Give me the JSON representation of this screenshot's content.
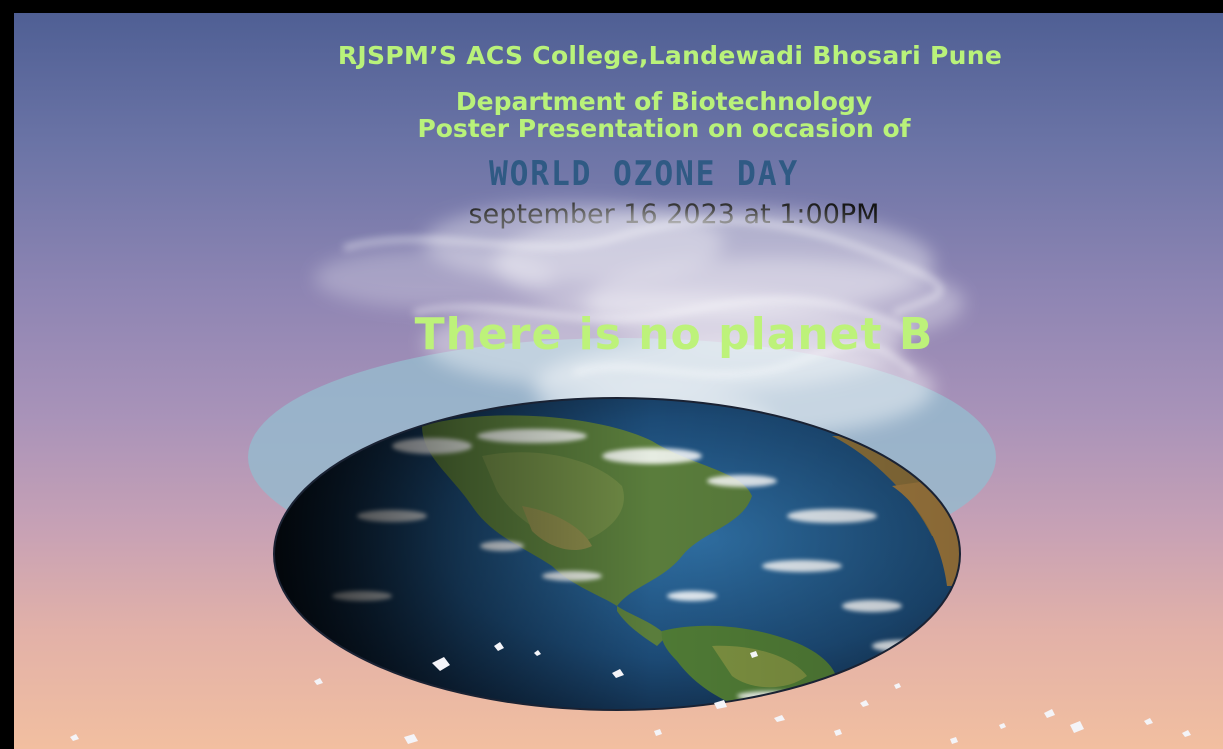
{
  "poster": {
    "college_line": "RJSPM’S ACS College,Landewadi Bhosari Pune",
    "department_line": "Department of Biotechnology",
    "occasion_line": "Poster Presentation on occasion of",
    "event_title": "WORLD OZONE DAY",
    "date_time": "september 16 2023 at  1:00PM",
    "slogan": "There is no planet B"
  },
  "colors": {
    "headline_green": "#b9f27a",
    "event_blue": "#2f5a84",
    "date_black": "#111111",
    "halo_blue": "#96b9cd",
    "sky_top": "#4f5f94",
    "sky_bottom": "#f2bfa0"
  },
  "icons": {
    "globe": "earth-globe-icon",
    "smoke": "smoke-plume",
    "fragments": "ice-fragments"
  }
}
